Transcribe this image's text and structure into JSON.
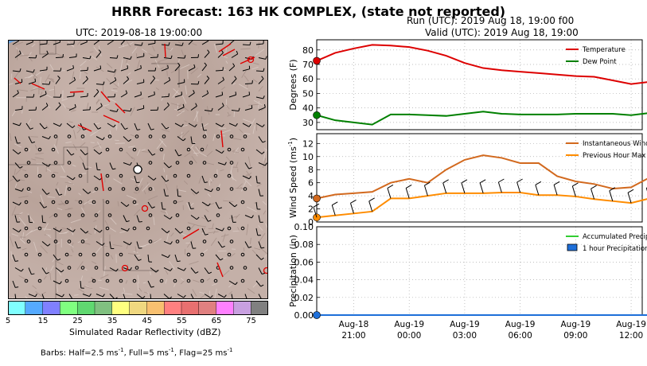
{
  "figure": {
    "title": "HRRR Forecast: 163 HK COMPLEX, (state not reported)",
    "run_label": "Run (UTC): 2019 Aug 18, 19:00 f00",
    "valid_label": "Valid (UTC): 2019 Aug 18, 19:00"
  },
  "map": {
    "title": "UTC: 2019-08-18 19:00:00",
    "colorbar_label": "Simulated Radar Reflectivity (dBZ)",
    "colorbar_ticks": [
      "5",
      "15",
      "25",
      "35",
      "45",
      "55",
      "65",
      "75"
    ],
    "colorbar_colors": [
      "#80ffff",
      "#55aaff",
      "#8080ff",
      "#80ff80",
      "#60d870",
      "#80c080",
      "#ffff80",
      "#f0d880",
      "#f8c070",
      "#ff8080",
      "#e87070",
      "#e08080",
      "#ff80ff",
      "#c8a0e0",
      "#808080"
    ],
    "barb_caption_parts": [
      "Barbs: Half=2.5 ms",
      "-1",
      ", Full=5 ms",
      "-1",
      ", Flag=25 ms",
      "-1"
    ]
  },
  "chart_data": [
    {
      "type": "line",
      "ylabel": "Degrees (F)",
      "ylim": [
        25,
        87
      ],
      "yticks": [
        30,
        40,
        50,
        60,
        70,
        80
      ],
      "grid": true,
      "legend": "top-right",
      "x": [
        "Aug 18 19:00",
        "Aug 18 20:00",
        "Aug 18 21:00",
        "Aug 18 22:00",
        "Aug 18 23:00",
        "Aug 19 00:00",
        "Aug 19 01:00",
        "Aug 19 02:00",
        "Aug 19 03:00",
        "Aug 19 04:00",
        "Aug 19 05:00",
        "Aug 19 06:00",
        "Aug 19 07:00",
        "Aug 19 08:00",
        "Aug 19 09:00",
        "Aug 19 10:00",
        "Aug 19 11:00",
        "Aug 19 12:00",
        "Aug 19 12:36"
      ],
      "series": [
        {
          "name": "Temperature",
          "color": "#dd0000",
          "values": [
            72.5,
            78,
            81,
            83.5,
            83,
            82,
            79.5,
            76,
            71,
            67.5,
            66,
            65,
            64,
            63,
            62,
            61.5,
            59,
            56.5,
            58
          ]
        },
        {
          "name": "Dew Point",
          "color": "#008000",
          "values": [
            35,
            31.5,
            30,
            28.5,
            35.5,
            35.5,
            35,
            34.5,
            36,
            37.5,
            36,
            35.5,
            35.5,
            35.5,
            36,
            36,
            36,
            35,
            36.5
          ]
        }
      ]
    },
    {
      "type": "line",
      "ylabel_parts": [
        "Wind Speed (ms",
        "-1",
        ")"
      ],
      "ylim": [
        0,
        13.5
      ],
      "yticks": [
        0,
        2,
        4,
        6,
        8,
        10,
        12
      ],
      "grid": true,
      "legend": "top-right",
      "x": [
        "Aug 18 19:00",
        "Aug 18 20:00",
        "Aug 18 21:00",
        "Aug 18 22:00",
        "Aug 18 23:00",
        "Aug 19 00:00",
        "Aug 19 01:00",
        "Aug 19 02:00",
        "Aug 19 03:00",
        "Aug 19 04:00",
        "Aug 19 05:00",
        "Aug 19 06:00",
        "Aug 19 07:00",
        "Aug 19 08:00",
        "Aug 19 09:00",
        "Aug 19 10:00",
        "Aug 19 11:00",
        "Aug 19 12:00",
        "Aug 19 12:36"
      ],
      "series": [
        {
          "name": "Instantaneous Wind Gust",
          "color": "#d2691e",
          "values": [
            3.6,
            4.2,
            4.4,
            4.6,
            6,
            6.6,
            6,
            8,
            9.5,
            10.2,
            9.8,
            9,
            9,
            7,
            6.2,
            5.8,
            5.1,
            5.3,
            6.8
          ]
        },
        {
          "name": "Previous Hour Max Wind",
          "color": "#ff8c00",
          "values": [
            0.7,
            1,
            1.3,
            1.6,
            3.6,
            3.6,
            4,
            4.4,
            4.4,
            4.4,
            4.5,
            4.5,
            4.1,
            4.1,
            3.9,
            3.5,
            3.2,
            2.9,
            3.6
          ]
        }
      ]
    },
    {
      "type": "line",
      "ylabel": "Precipitation (in)",
      "ylim": [
        0,
        0.1
      ],
      "yticks": [
        "0.00",
        "0.02",
        "0.04",
        "0.06",
        "0.08",
        "0.10"
      ],
      "grid": true,
      "legend": "top-right",
      "x": [
        "Aug 18 19:00",
        "Aug 18 20:00",
        "Aug 18 21:00",
        "Aug 18 22:00",
        "Aug 18 23:00",
        "Aug 19 00:00",
        "Aug 19 01:00",
        "Aug 19 02:00",
        "Aug 19 03:00",
        "Aug 19 04:00",
        "Aug 19 05:00",
        "Aug 19 06:00",
        "Aug 19 07:00",
        "Aug 19 08:00",
        "Aug 19 09:00",
        "Aug 19 10:00",
        "Aug 19 11:00",
        "Aug 19 12:00",
        "Aug 19 12:36"
      ],
      "series": [
        {
          "name": "Accumulated Precipitation",
          "color": "#32cd32",
          "values": [
            0,
            0,
            0,
            0,
            0,
            0,
            0,
            0,
            0,
            0,
            0,
            0,
            0,
            0,
            0,
            0,
            0,
            0,
            0
          ]
        },
        {
          "name": "1 hour Precipitation",
          "color": "#1e6fd9",
          "values": [
            0,
            0,
            0,
            0,
            0,
            0,
            0,
            0,
            0,
            0,
            0,
            0,
            0,
            0,
            0,
            0,
            0,
            0,
            0
          ]
        }
      ],
      "xticks": [
        {
          "line1": "Aug-18",
          "line2": "21:00"
        },
        {
          "line1": "Aug-19",
          "line2": "00:00"
        },
        {
          "line1": "Aug-19",
          "line2": "03:00"
        },
        {
          "line1": "Aug-19",
          "line2": "06:00"
        },
        {
          "line1": "Aug-19",
          "line2": "09:00"
        },
        {
          "line1": "Aug-19",
          "line2": "12:00"
        }
      ]
    }
  ]
}
